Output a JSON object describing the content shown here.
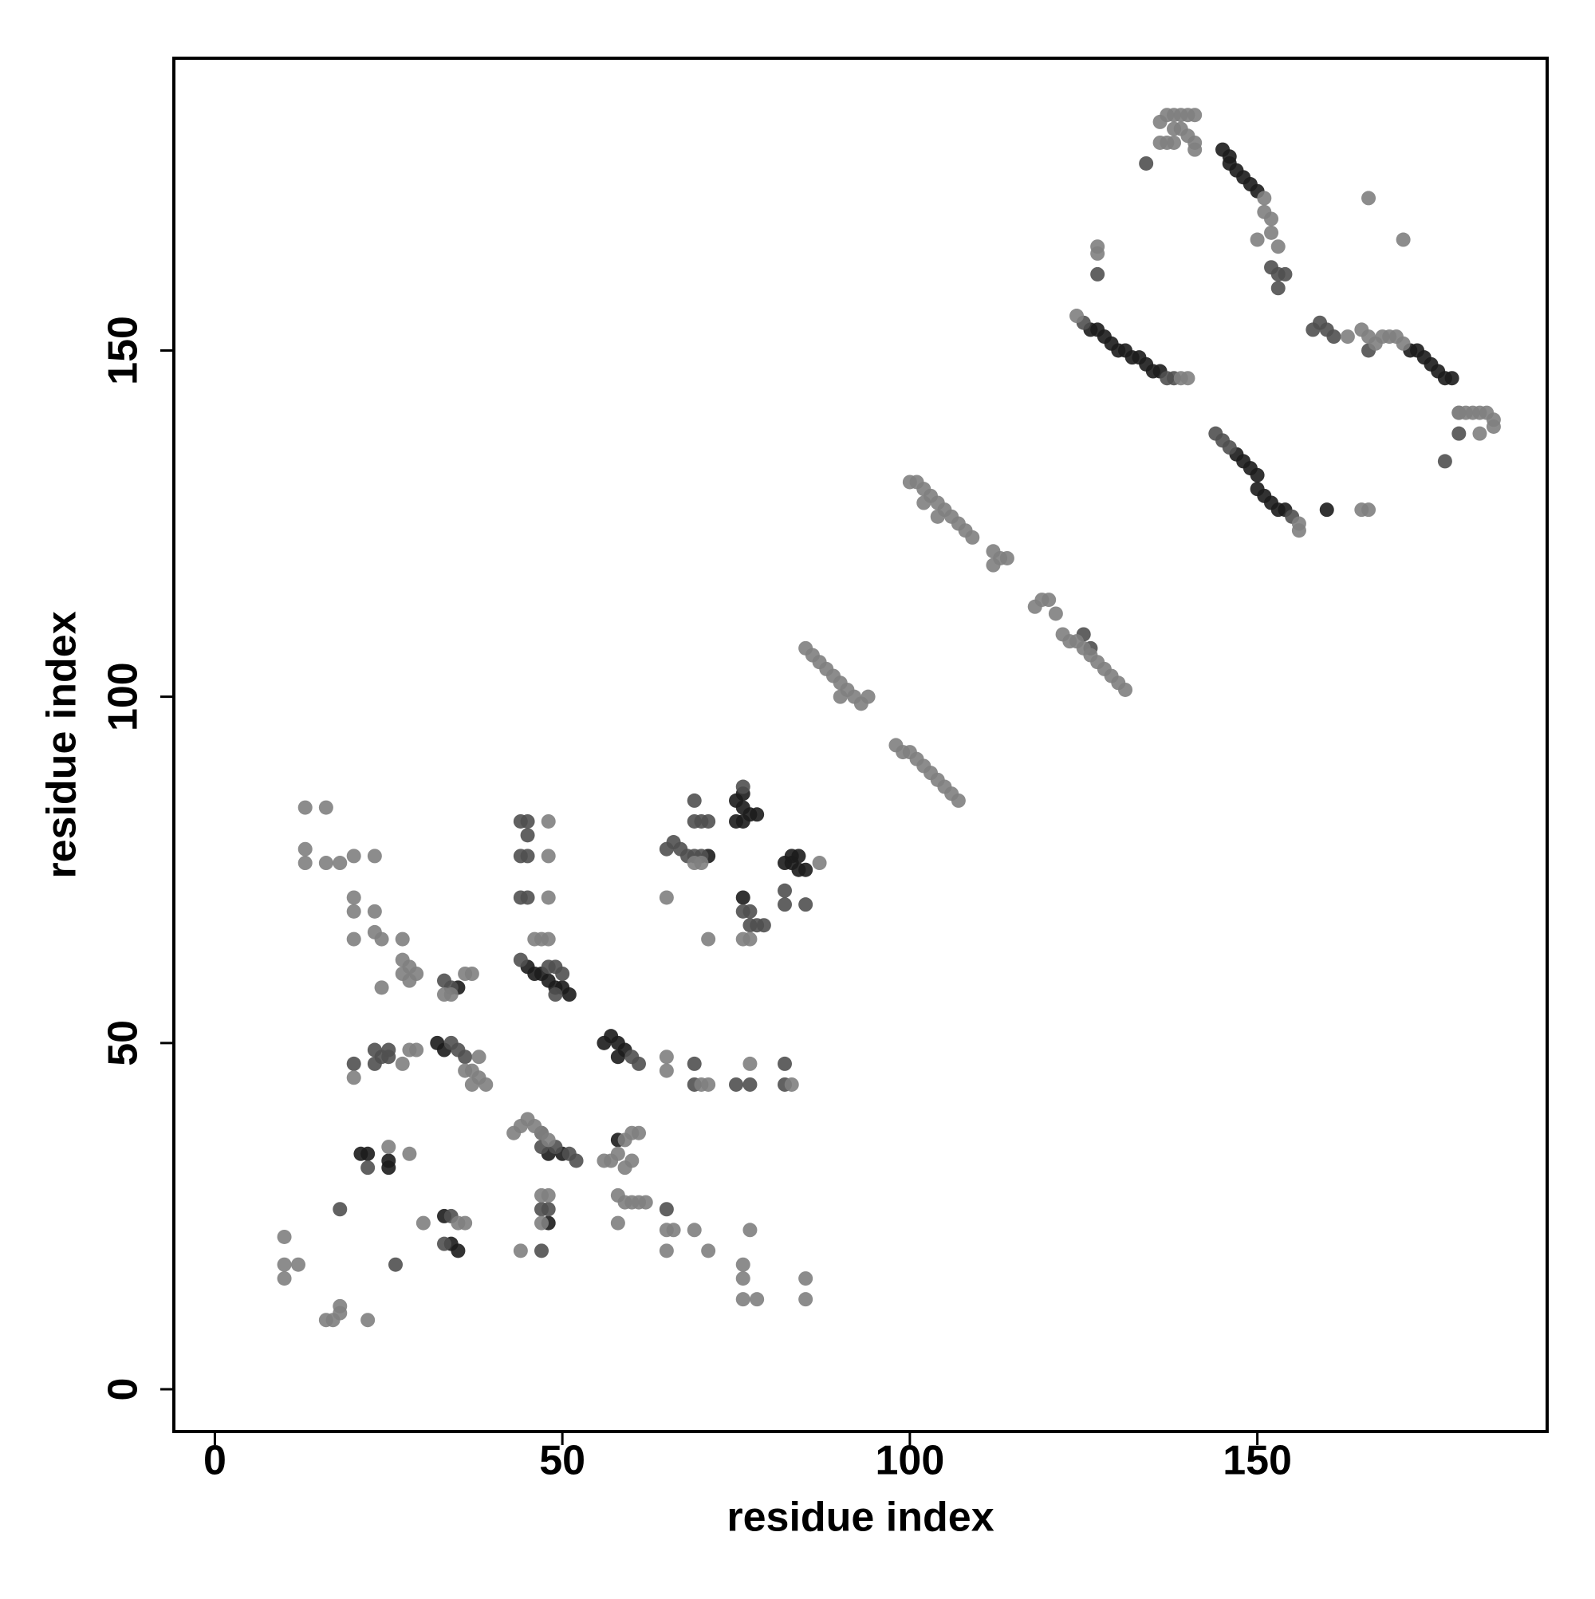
{
  "chart_data": {
    "type": "scatter",
    "x_label": "residue index",
    "y_label": "residue index",
    "xlim": [
      -5.9,
      191.7
    ],
    "ylim": [
      -6.1,
      192.2
    ],
    "xticks": [
      0,
      50,
      100,
      150
    ],
    "yticks": [
      0,
      50,
      100,
      150
    ],
    "series": [
      {
        "color": "#1c1c1c",
        "x": [
          145,
          146,
          146,
          147,
          148,
          149,
          150,
          126,
          127,
          128,
          129,
          130,
          131,
          132,
          133,
          134,
          135,
          136,
          172,
          173,
          174,
          175,
          176,
          177,
          178,
          147,
          148,
          149,
          150,
          150,
          151,
          152,
          153,
          154,
          160,
          75,
          76,
          76,
          77,
          75,
          76,
          78,
          71,
          82,
          83,
          84,
          85,
          83,
          84,
          76,
          45,
          46,
          47,
          48,
          49,
          50,
          51,
          35,
          32,
          33,
          56,
          57,
          58,
          59,
          58,
          48,
          50,
          21,
          22,
          25,
          25,
          33,
          34,
          35,
          48,
          58
        ],
        "y": [
          179,
          178,
          177,
          176,
          175,
          174,
          173,
          153,
          153,
          152,
          151,
          150,
          150,
          149,
          149,
          148,
          147,
          147,
          150,
          150,
          149,
          148,
          147,
          146,
          146,
          135,
          134,
          133,
          132,
          130,
          129,
          128,
          127,
          127,
          127,
          85,
          86,
          84,
          83,
          82,
          82,
          83,
          77,
          76,
          76,
          75,
          75,
          77,
          77,
          71,
          61,
          60,
          60,
          59,
          58,
          58,
          57,
          58,
          50,
          49,
          50,
          51,
          50,
          49,
          48,
          34,
          34,
          34,
          34,
          32,
          33,
          25,
          21,
          20,
          24,
          36
        ]
      },
      {
        "color": "#505050",
        "x": [
          134,
          127,
          152,
          153,
          154,
          153,
          125,
          137,
          138,
          158,
          159,
          160,
          161,
          166,
          179,
          177,
          144,
          145,
          146,
          155,
          125,
          126,
          76,
          69,
          69,
          70,
          71,
          65,
          66,
          67,
          68,
          69,
          70,
          77,
          76,
          77,
          78,
          79,
          82,
          82,
          85,
          44,
          45,
          45,
          44,
          45,
          44,
          45,
          44,
          48,
          49,
          50,
          49,
          33,
          34,
          34,
          35,
          36,
          60,
          61,
          20,
          23,
          24,
          25,
          23,
          25,
          69,
          69,
          77,
          82,
          82,
          75,
          47,
          47,
          49,
          51,
          52,
          22,
          34,
          33,
          47,
          48,
          47,
          26,
          18,
          65
        ],
        "y": [
          177,
          161,
          162,
          161,
          161,
          159,
          154,
          146,
          146,
          153,
          154,
          153,
          152,
          150,
          138,
          134,
          138,
          137,
          136,
          126,
          109,
          107,
          87,
          85,
          82,
          82,
          82,
          78,
          79,
          78,
          77,
          77,
          77,
          69,
          69,
          67,
          67,
          67,
          70,
          72,
          70,
          82,
          82,
          80,
          77,
          77,
          71,
          71,
          62,
          61,
          61,
          60,
          57,
          59,
          58,
          50,
          49,
          48,
          48,
          47,
          47,
          47,
          48,
          48,
          49,
          49,
          47,
          44,
          44,
          47,
          44,
          44,
          37,
          35,
          35,
          34,
          33,
          32,
          25,
          21,
          26,
          26,
          20,
          18,
          26,
          26
        ]
      },
      {
        "color": "#7f7f7f",
        "x": [
          136,
          137,
          138,
          139,
          140,
          141,
          138,
          139,
          140,
          141,
          136,
          137,
          138,
          141,
          151,
          151,
          152,
          152,
          153,
          150,
          127,
          127,
          166,
          171,
          124,
          139,
          140,
          165,
          166,
          167,
          168,
          169,
          170,
          171,
          163,
          179,
          180,
          181,
          182,
          183,
          184,
          184,
          182,
          179,
          156,
          156,
          165,
          166,
          100,
          101,
          102,
          103,
          104,
          105,
          106,
          107,
          108,
          109,
          104,
          102,
          112,
          113,
          114,
          112,
          118,
          119,
          120,
          121,
          122,
          123,
          124,
          125,
          126,
          127,
          128,
          129,
          130,
          131,
          85,
          86,
          87,
          88,
          89,
          90,
          91,
          92,
          93,
          90,
          94,
          98,
          99,
          100,
          101,
          102,
          103,
          104,
          105,
          106,
          107,
          65,
          69,
          70,
          87,
          71,
          76,
          77,
          48,
          48,
          48,
          46,
          47,
          48,
          37,
          36,
          37,
          33,
          34,
          13,
          16,
          13,
          13,
          16,
          18,
          20,
          23,
          20,
          20,
          23,
          20,
          23,
          24,
          27,
          27,
          28,
          27,
          29,
          28,
          24,
          20,
          27,
          28,
          29,
          38,
          37,
          38,
          39,
          36,
          65,
          65,
          70,
          71,
          77,
          83,
          43,
          44,
          45,
          46,
          47,
          48,
          25,
          28,
          56,
          57,
          58,
          59,
          60,
          61,
          60,
          59,
          58,
          59,
          60,
          61,
          62,
          66,
          65,
          58,
          47,
          48,
          47,
          44,
          35,
          36,
          30,
          65,
          69,
          71,
          77,
          76,
          76,
          76,
          78,
          85,
          85,
          10,
          10,
          10,
          12,
          16,
          17,
          18,
          18,
          22
        ],
        "y": [
          183,
          184,
          184,
          184,
          184,
          184,
          182,
          182,
          181,
          180,
          180,
          180,
          180,
          179,
          172,
          170,
          169,
          167,
          165,
          166,
          165,
          164,
          172,
          166,
          155,
          146,
          146,
          153,
          152,
          151,
          152,
          152,
          152,
          151,
          152,
          141,
          141,
          141,
          141,
          141,
          140,
          139,
          138,
          141,
          125,
          124,
          127,
          127,
          131,
          131,
          130,
          129,
          128,
          127,
          126,
          125,
          124,
          123,
          126,
          128,
          121,
          120,
          120,
          119,
          113,
          114,
          114,
          112,
          109,
          108,
          108,
          107,
          106,
          105,
          104,
          103,
          102,
          101,
          107,
          106,
          105,
          104,
          103,
          102,
          101,
          100,
          99,
          100,
          100,
          93,
          92,
          92,
          91,
          90,
          89,
          88,
          87,
          86,
          85,
          71,
          76,
          76,
          76,
          65,
          65,
          65,
          82,
          77,
          71,
          65,
          65,
          65,
          60,
          60,
          44,
          57,
          57,
          84,
          84,
          78,
          76,
          76,
          76,
          77,
          77,
          71,
          69,
          69,
          65,
          66,
          65,
          65,
          62,
          61,
          60,
          60,
          59,
          58,
          45,
          47,
          49,
          49,
          48,
          46,
          45,
          44,
          46,
          48,
          46,
          44,
          44,
          47,
          44,
          37,
          38,
          39,
          38,
          37,
          36,
          35,
          34,
          33,
          33,
          34,
          36,
          37,
          37,
          33,
          32,
          28,
          27,
          27,
          27,
          27,
          23,
          23,
          24,
          28,
          28,
          24,
          20,
          24,
          24,
          24,
          20,
          23,
          20,
          23,
          18,
          16,
          13,
          13,
          16,
          13,
          22,
          18,
          16,
          18,
          10,
          10,
          11,
          12,
          10
        ]
      }
    ]
  }
}
